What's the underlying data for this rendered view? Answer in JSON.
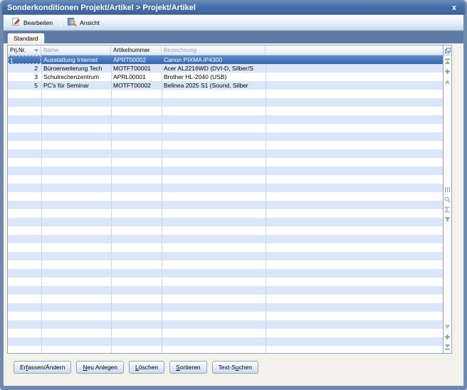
{
  "window": {
    "title": "Sonderkonditionen Projekt/Artikel > Projekt/Artikel",
    "close_label": "x"
  },
  "toolbar": {
    "buttons": [
      {
        "label": "Bearbeiten",
        "icon": "edit-icon"
      },
      {
        "label": "Ansicht",
        "icon": "view-icon"
      }
    ]
  },
  "tab": {
    "label": "Standard"
  },
  "grid": {
    "columns": [
      {
        "label": "Prj.Nr.",
        "muted": false,
        "sort": "desc"
      },
      {
        "label": "Name",
        "muted": true
      },
      {
        "label": "Artikelnummer",
        "muted": false
      },
      {
        "label": "Bezeichnung",
        "muted": true
      },
      {
        "label": "",
        "muted": true
      }
    ],
    "rows": [
      {
        "prjnr": "1",
        "name": "Ausstattung Internet",
        "artikelnummer": "APRT00002",
        "bezeichnung": "Canon PIXMA iP4300",
        "selected": true
      },
      {
        "prjnr": "2",
        "name": "Büroerweiterung Tech",
        "artikelnummer": "MOTFT00001",
        "bezeichnung": "Acer AL2216WD (DVI-D, Silber/S",
        "selected": false
      },
      {
        "prjnr": "3",
        "name": "Schulrechenzentrum",
        "artikelnummer": "APRL00001",
        "bezeichnung": "Brother HL-2040 (USB)",
        "selected": false
      },
      {
        "prjnr": "5",
        "name": "PC's für Seminar",
        "artikelnummer": "MOTFT00002",
        "bezeichnung": "Belinea 2025 S1 (Sound, Silber",
        "selected": false
      }
    ],
    "colors": {
      "selected_row": "#3e6cb0",
      "stripe": "#dbe7f8",
      "header_muted_text": "#96a2b1"
    }
  },
  "side_strip": {
    "icons": [
      "column-chooser-icon",
      "scroll-top-icon",
      "insert-row-icon",
      "scroll-up-icon",
      "fit-columns-icon",
      "search-icon",
      "sum-icon",
      "filter-icon",
      "scroll-down-icon",
      "append-row-icon",
      "scroll-bottom-icon"
    ]
  },
  "footer": {
    "buttons": [
      {
        "label": "Erfassen/Ändern",
        "underline_index": 2
      },
      {
        "label": "Neu Anlegen",
        "underline_index": 0
      },
      {
        "label": "Löschen",
        "underline_index": 0
      },
      {
        "label": "Sortieren",
        "underline_index": 0
      },
      {
        "label": "Text-Suchen",
        "underline_index": 6
      }
    ]
  }
}
